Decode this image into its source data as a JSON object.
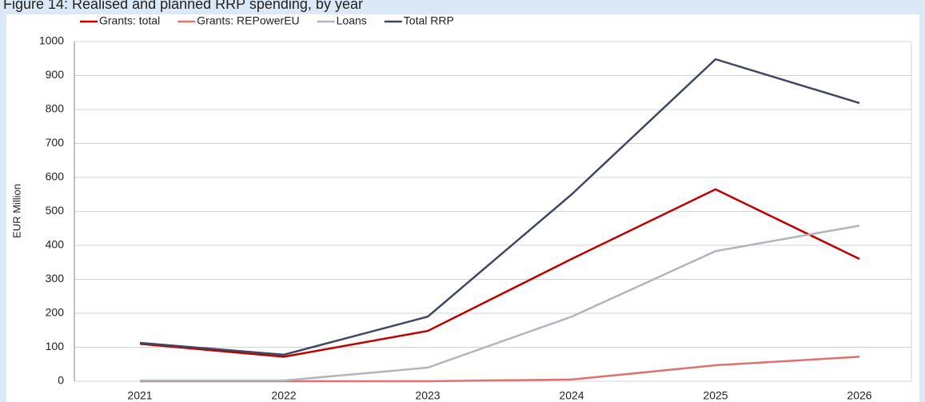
{
  "chart_data": {
    "type": "line",
    "title": "Figure 14: Realised and planned RRP spending, by year",
    "y_label": "EUR Million",
    "categories": [
      "2021",
      "2022",
      "2023",
      "2024",
      "2025",
      "2026"
    ],
    "series": [
      {
        "name": "Grants: total",
        "color": "#c00000",
        "values": [
          110,
          72,
          148,
          360,
          565,
          360
        ]
      },
      {
        "name": "Grants: REPowerEU",
        "color": "#e07070",
        "values": [
          0,
          0,
          0,
          5,
          47,
          72
        ]
      },
      {
        "name": "Loans",
        "color": "#b1b5bc",
        "values": [
          2,
          2,
          40,
          190,
          383,
          458
        ]
      },
      {
        "name": "Total RRP",
        "color": "#3f4660",
        "values": [
          113,
          78,
          190,
          550,
          948,
          819
        ]
      }
    ],
    "ylim": [
      0,
      1000
    ],
    "yticks": [
      0,
      100,
      200,
      300,
      400,
      500,
      600,
      700,
      800,
      900,
      1000
    ],
    "grid": true
  }
}
